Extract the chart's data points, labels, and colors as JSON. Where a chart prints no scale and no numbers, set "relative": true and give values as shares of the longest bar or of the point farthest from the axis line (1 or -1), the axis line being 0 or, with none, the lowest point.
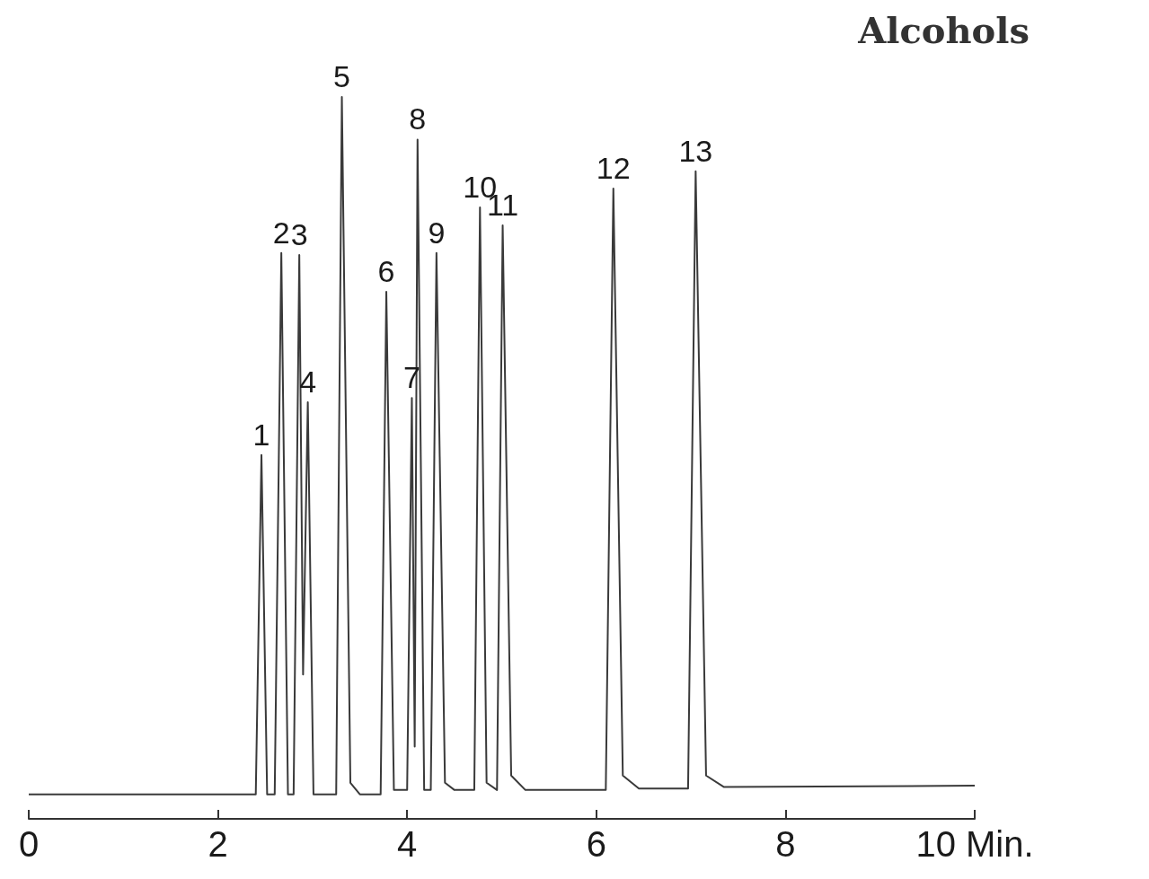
{
  "chart_data": {
    "type": "line",
    "title": "Alcohols",
    "relative": true,
    "color": "#3a3a3a",
    "marker": "none",
    "xlim": [
      0,
      10
    ],
    "xticks": [
      0,
      2,
      4,
      6,
      8,
      {
        "value": 10,
        "label": "10 Min."
      }
    ],
    "x": [
      0,
      2.4,
      2.46,
      2.52,
      2.6,
      2.67,
      2.74,
      2.8,
      2.86,
      2.9,
      2.95,
      3.01,
      3.25,
      3.31,
      3.4,
      3.5,
      3.72,
      3.78,
      3.86,
      4.0,
      4.05,
      4.08,
      4.11,
      4.18,
      4.25,
      4.31,
      4.4,
      4.5,
      4.71,
      4.77,
      4.84,
      4.95,
      5.01,
      5.1,
      5.25,
      6.1,
      6.18,
      6.28,
      6.45,
      6.97,
      7.05,
      7.16,
      7.35,
      10
    ],
    "values": [
      0.034,
      0.034,
      0.504,
      0.034,
      0.034,
      0.784,
      0.034,
      0.034,
      0.781,
      0.2,
      0.577,
      0.034,
      0.034,
      1,
      0.05,
      0.034,
      0.034,
      0.73,
      0.04,
      0.04,
      0.583,
      0.1,
      0.941,
      0.04,
      0.04,
      0.784,
      0.05,
      0.04,
      0.04,
      0.847,
      0.05,
      0.04,
      0.822,
      0.06,
      0.04,
      0.04,
      0.873,
      0.06,
      0.042,
      0.042,
      0.897,
      0.06,
      0.044,
      0.046
    ],
    "annotations": [
      {
        "text": "1",
        "x": 2.46,
        "y": 0.504
      },
      {
        "text": "2",
        "x": 2.67,
        "y": 0.784
      },
      {
        "text": "3",
        "x": 2.86,
        "y": 0.781
      },
      {
        "text": "4",
        "x": 2.95,
        "y": 0.577
      },
      {
        "text": "5",
        "x": 3.31,
        "y": 1
      },
      {
        "text": "6",
        "x": 3.78,
        "y": 0.73
      },
      {
        "text": "7",
        "x": 4.05,
        "y": 0.583
      },
      {
        "text": "8",
        "x": 4.11,
        "y": 0.941
      },
      {
        "text": "9",
        "x": 4.31,
        "y": 0.784
      },
      {
        "text": "10",
        "x": 4.77,
        "y": 0.847
      },
      {
        "text": "11",
        "x": 5.01,
        "y": 0.822
      },
      {
        "text": "12",
        "x": 6.18,
        "y": 0.873
      },
      {
        "text": "13",
        "x": 7.05,
        "y": 0.897
      }
    ]
  }
}
